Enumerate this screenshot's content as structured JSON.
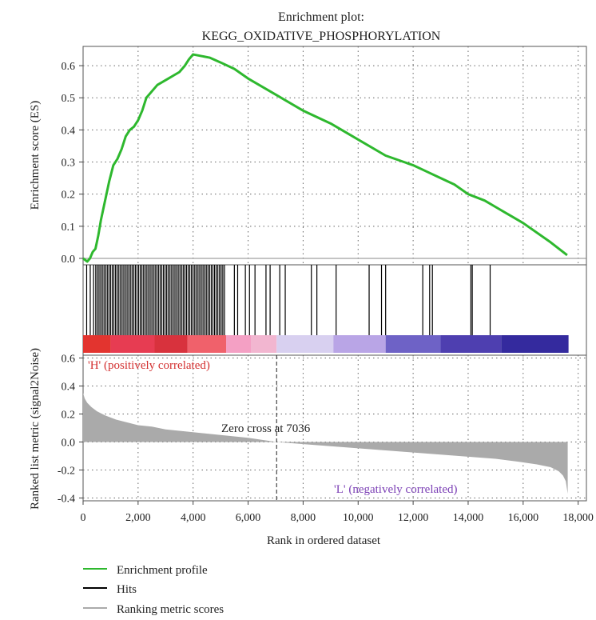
{
  "chart_data": {
    "type": "line",
    "title_line1": "Enrichment plot:",
    "title_line2": "KEGG_OXIDATIVE_PHOSPHORYLATION",
    "xlabel": "Rank in ordered dataset",
    "x_ticks": [
      0,
      2000,
      4000,
      6000,
      8000,
      10000,
      12000,
      14000,
      16000,
      18000
    ],
    "x_tick_labels": [
      "0",
      "2,000",
      "4,000",
      "6,000",
      "8,000",
      "10,000",
      "12,000",
      "14,000",
      "16,000",
      "18,000"
    ],
    "xlim": [
      0,
      18300
    ],
    "grid": true,
    "legend_position": "bottom-left",
    "colors": {
      "profile": "#2eb82e",
      "hits": "#000000",
      "metric": "#aaaaaa",
      "positive_text": "#d32f2f",
      "negative_text": "#7b3fb5"
    },
    "enrichment_panel": {
      "ylabel": "Enrichment score (ES)",
      "ylim": [
        -0.02,
        0.66
      ],
      "y_ticks": [
        0.0,
        0.1,
        0.2,
        0.3,
        0.4,
        0.5,
        0.6
      ],
      "y_tick_labels": [
        "0.0",
        "0.1",
        "0.2",
        "0.3",
        "0.4",
        "0.5",
        "0.6"
      ],
      "profile": {
        "x": [
          0,
          150,
          250,
          350,
          450,
          550,
          650,
          800,
          950,
          1100,
          1250,
          1400,
          1550,
          1700,
          1850,
          2000,
          2150,
          2300,
          2500,
          2700,
          2900,
          3100,
          3300,
          3500,
          3700,
          3850,
          4000,
          4300,
          4600,
          5000,
          5500,
          6000,
          7000,
          8000,
          9000,
          10000,
          11000,
          12000,
          12500,
          13000,
          13500,
          14000,
          14300,
          14600,
          15000,
          16000,
          17000,
          17600
        ],
        "y": [
          0.0,
          -0.01,
          0.0,
          0.02,
          0.03,
          0.07,
          0.12,
          0.18,
          0.24,
          0.29,
          0.31,
          0.34,
          0.38,
          0.4,
          0.41,
          0.43,
          0.46,
          0.5,
          0.52,
          0.54,
          0.55,
          0.56,
          0.57,
          0.58,
          0.6,
          0.62,
          0.635,
          0.63,
          0.625,
          0.61,
          0.59,
          0.56,
          0.51,
          0.46,
          0.42,
          0.37,
          0.32,
          0.29,
          0.27,
          0.25,
          0.23,
          0.2,
          0.19,
          0.18,
          0.16,
          0.11,
          0.05,
          0.01
        ]
      }
    },
    "hits_panel": {
      "hits": [
        130,
        260,
        380,
        460,
        520,
        580,
        640,
        700,
        760,
        820,
        880,
        940,
        1000,
        1060,
        1120,
        1180,
        1240,
        1300,
        1360,
        1420,
        1480,
        1540,
        1600,
        1660,
        1720,
        1780,
        1840,
        1900,
        1960,
        2020,
        2080,
        2140,
        2200,
        2260,
        2320,
        2380,
        2440,
        2500,
        2560,
        2620,
        2680,
        2740,
        2800,
        2860,
        2920,
        2980,
        3040,
        3100,
        3160,
        3220,
        3280,
        3340,
        3400,
        3460,
        3520,
        3580,
        3640,
        3700,
        3760,
        3820,
        3880,
        3940,
        4000,
        4060,
        4120,
        4180,
        4240,
        4300,
        4360,
        4420,
        4480,
        4540,
        4600,
        4660,
        4720,
        4780,
        4840,
        4900,
        4960,
        5020,
        5080,
        5140,
        5500,
        5620,
        5900,
        6050,
        6250,
        6650,
        6800,
        7150,
        7350,
        8300,
        8500,
        9200,
        10400,
        10850,
        11000,
        12350,
        12600,
        12700,
        14100,
        14150,
        14800
      ],
      "bands": [
        {
          "from": 0,
          "to": 1000,
          "color": "#e3342f"
        },
        {
          "from": 1000,
          "to": 2600,
          "color": "#e73c52"
        },
        {
          "from": 2600,
          "to": 3800,
          "color": "#d8323d"
        },
        {
          "from": 3800,
          "to": 5200,
          "color": "#f0616b"
        },
        {
          "from": 5200,
          "to": 6100,
          "color": "#f4a0c4"
        },
        {
          "from": 6100,
          "to": 7036,
          "color": "#f2b6d0"
        },
        {
          "from": 7036,
          "to": 9100,
          "color": "#d8d0f0"
        },
        {
          "from": 9100,
          "to": 11000,
          "color": "#b9a5e6"
        },
        {
          "from": 11000,
          "to": 13000,
          "color": "#6e62c6"
        },
        {
          "from": 13000,
          "to": 15200,
          "color": "#4e3fb0"
        },
        {
          "from": 15200,
          "to": 17650,
          "color": "#342a9e"
        }
      ]
    },
    "metric_panel": {
      "ylabel": "Ranked list metric (signal2Noise)",
      "ylim": [
        -0.42,
        0.62
      ],
      "y_ticks": [
        -0.4,
        -0.2,
        0.0,
        0.2,
        0.4,
        0.6
      ],
      "y_tick_labels": [
        "-0.4",
        "-0.2",
        "0.0",
        "0.2",
        "0.4",
        "0.6"
      ],
      "metric": {
        "x": [
          0,
          60,
          150,
          300,
          500,
          800,
          1200,
          1600,
          2000,
          2500,
          3000,
          3500,
          4000,
          4500,
          5000,
          6000,
          7036,
          8000,
          9000,
          10000,
          11000,
          12000,
          13000,
          14000,
          15000,
          15800,
          16500,
          17000,
          17300,
          17450,
          17550,
          17620
        ],
        "y": [
          0.35,
          0.31,
          0.28,
          0.25,
          0.22,
          0.19,
          0.16,
          0.14,
          0.12,
          0.11,
          0.09,
          0.08,
          0.07,
          0.06,
          0.05,
          0.03,
          0.0,
          -0.015,
          -0.03,
          -0.045,
          -0.06,
          -0.075,
          -0.09,
          -0.105,
          -0.12,
          -0.14,
          -0.16,
          -0.18,
          -0.21,
          -0.24,
          -0.28,
          -0.37
        ]
      },
      "zero_cross": 7036,
      "zero_cross_label": "Zero cross at 7036",
      "positive_label": "'H' (positively correlated)",
      "negative_label": "'L' (negatively correlated)"
    },
    "legend": [
      {
        "label": "Enrichment profile",
        "color": "#2eb82e"
      },
      {
        "label": "Hits",
        "color": "#000000"
      },
      {
        "label": "Ranking metric scores",
        "color": "#aaaaaa"
      }
    ]
  }
}
